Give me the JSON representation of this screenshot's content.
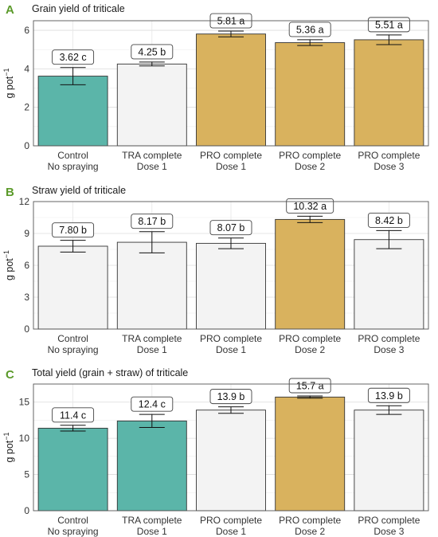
{
  "chart_data": [
    {
      "type": "bar",
      "panel_label": "A",
      "title": "Grain yield of triticale",
      "ylabel": "g pot",
      "ylabel_sup": "−1",
      "ylim": [
        0,
        6.5
      ],
      "yticks": [
        "0",
        "2",
        "4",
        "6"
      ],
      "grid": true,
      "categories": [
        [
          "Control",
          "No spraying"
        ],
        [
          "TRA complete",
          "Dose 1"
        ],
        [
          "PRO complete",
          "Dose 1"
        ],
        [
          "PRO complete",
          "Dose 2"
        ],
        [
          "PRO complete",
          "Dose 3"
        ]
      ],
      "values": [
        3.62,
        4.25,
        5.81,
        5.36,
        5.51
      ],
      "errors": [
        0.45,
        0.1,
        0.15,
        0.15,
        0.25
      ],
      "labels": [
        "3.62 c",
        "4.25 b",
        "5.81 a",
        "5.36 a",
        "5.51 a"
      ],
      "colors": [
        "#5bb5a9",
        "#f3f3f3",
        "#d9b25e",
        "#d9b25e",
        "#d9b25e"
      ]
    },
    {
      "type": "bar",
      "panel_label": "B",
      "title": "Straw yield of triticale",
      "ylabel": "g pot",
      "ylabel_sup": "−1",
      "ylim": [
        0,
        12
      ],
      "yticks": [
        "0",
        "3",
        "6",
        "9",
        "12"
      ],
      "grid": true,
      "categories": [
        [
          "Control",
          "No spraying"
        ],
        [
          "TRA complete",
          "Dose 1"
        ],
        [
          "PRO complete",
          "Dose 1"
        ],
        [
          "PRO complete",
          "Dose 2"
        ],
        [
          "PRO complete",
          "Dose 3"
        ]
      ],
      "values": [
        7.8,
        8.17,
        8.07,
        10.32,
        8.42
      ],
      "errors": [
        0.55,
        1.0,
        0.5,
        0.3,
        0.85
      ],
      "labels": [
        "7.80 b",
        "8.17 b",
        "8.07 b",
        "10.32 a",
        "8.42 b"
      ],
      "colors": [
        "#f3f3f3",
        "#f3f3f3",
        "#f3f3f3",
        "#d9b25e",
        "#f3f3f3"
      ]
    },
    {
      "type": "bar",
      "panel_label": "C",
      "title": "Total yield (grain + straw) of triticale",
      "ylabel": "g pot",
      "ylabel_sup": "−1",
      "ylim": [
        0,
        17.5
      ],
      "yticks": [
        "0",
        "5",
        "10",
        "15"
      ],
      "grid": true,
      "categories": [
        [
          "Control",
          "No spraying"
        ],
        [
          "TRA complete",
          "Dose 1"
        ],
        [
          "PRO complete",
          "Dose 1"
        ],
        [
          "PRO complete",
          "Dose 2"
        ],
        [
          "PRO complete",
          "Dose 3"
        ]
      ],
      "values": [
        11.4,
        12.4,
        13.9,
        15.7,
        13.9
      ],
      "errors": [
        0.4,
        0.9,
        0.45,
        0.15,
        0.6
      ],
      "labels": [
        "11.4 c",
        "12.4 c",
        "13.9 b",
        "15.7 a",
        "13.9 b"
      ],
      "colors": [
        "#5bb5a9",
        "#5bb5a9",
        "#f3f3f3",
        "#d9b25e",
        "#f3f3f3"
      ]
    }
  ]
}
